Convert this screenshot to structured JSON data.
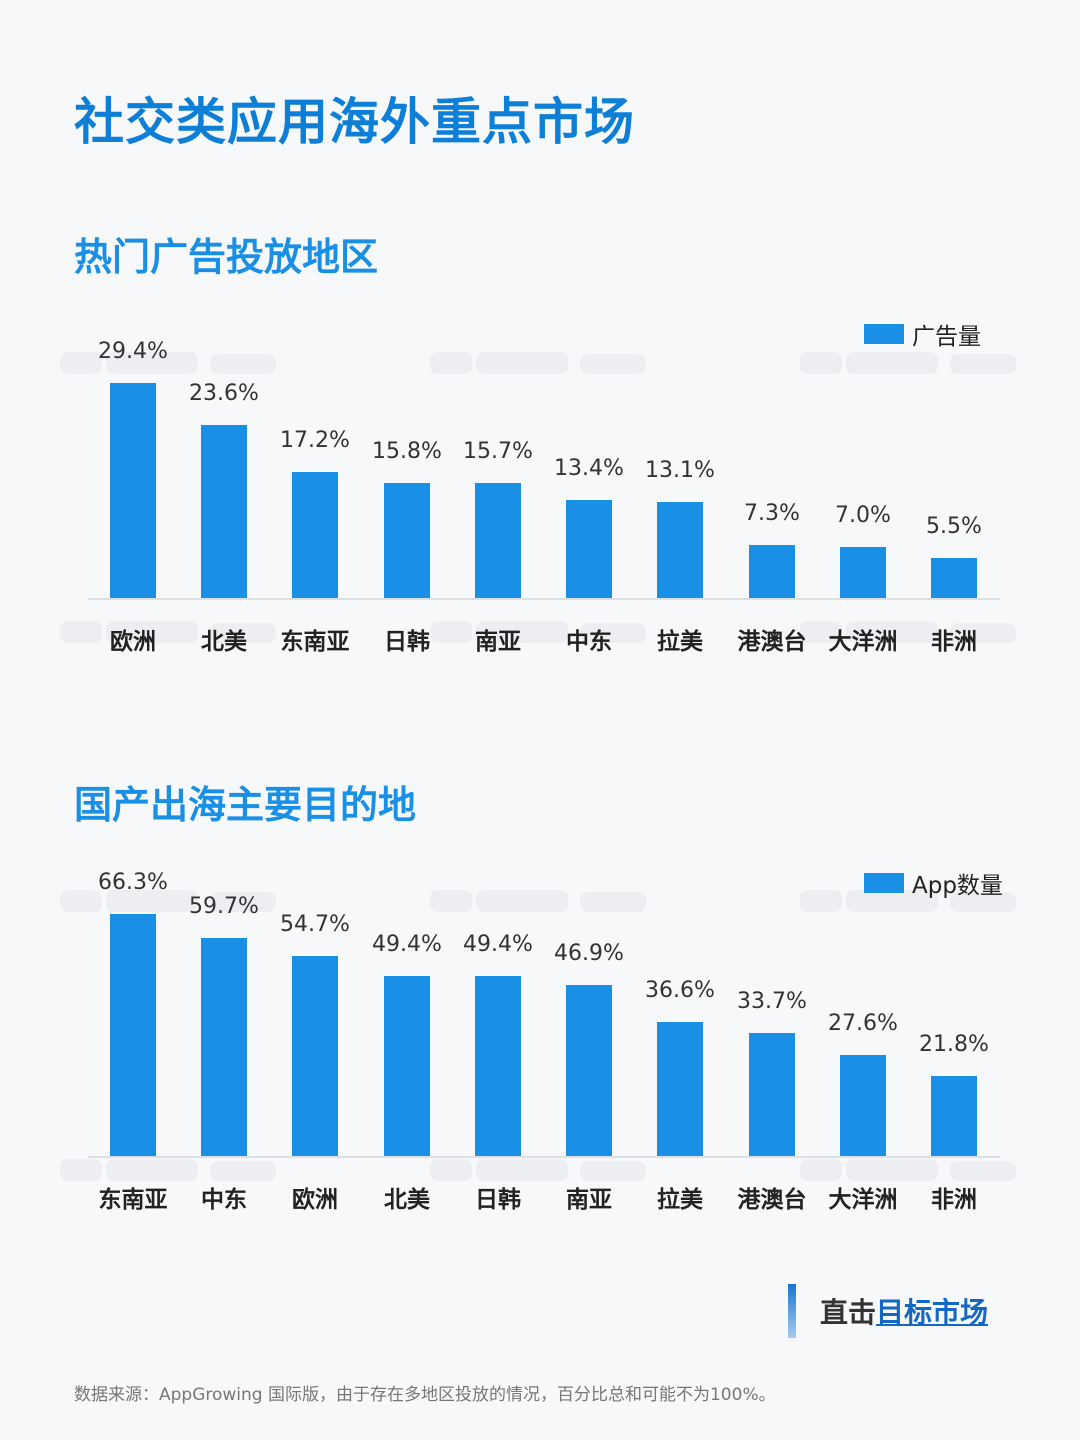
{
  "title": "社交类应用海外重点市场",
  "watermark": "AppGrowing 国际版",
  "colors": {
    "bar": "#1a8fe6",
    "title": "#0d7fd6"
  },
  "chart_data": [
    {
      "type": "bar",
      "title": "热门广告投放地区",
      "legend": "广告量",
      "legend_position": "top-right",
      "categories": [
        "欧洲",
        "北美",
        "东南亚",
        "日韩",
        "南亚",
        "中东",
        "拉美",
        "港澳台",
        "大洋洲",
        "非洲"
      ],
      "values": [
        29.4,
        23.6,
        17.2,
        15.8,
        15.7,
        13.4,
        13.1,
        7.3,
        7.0,
        5.5
      ],
      "labels": [
        "29.4%",
        "23.6%",
        "17.2%",
        "15.8%",
        "15.7%",
        "13.4%",
        "13.1%",
        "7.3%",
        "7.0%",
        "5.5%"
      ],
      "unit": "%",
      "grid": false
    },
    {
      "type": "bar",
      "title": "国产出海主要目的地",
      "legend": "App数量",
      "legend_position": "top-right",
      "categories": [
        "东南亚",
        "中东",
        "欧洲",
        "北美",
        "日韩",
        "南亚",
        "拉美",
        "港澳台",
        "大洋洲",
        "非洲"
      ],
      "values": [
        66.3,
        59.7,
        54.7,
        49.4,
        49.4,
        46.9,
        36.6,
        33.7,
        27.6,
        21.8
      ],
      "labels": [
        "66.3%",
        "59.7%",
        "54.7%",
        "49.4%",
        "49.4%",
        "46.9%",
        "36.6%",
        "33.7%",
        "27.6%",
        "21.8%"
      ],
      "unit": "%",
      "grid": false
    }
  ],
  "cta": {
    "prefix": "直击",
    "link": "目标市场"
  },
  "footnote": "数据来源：AppGrowing 国际版，由于存在多地区投放的情况，百分比总和可能不为100%。"
}
